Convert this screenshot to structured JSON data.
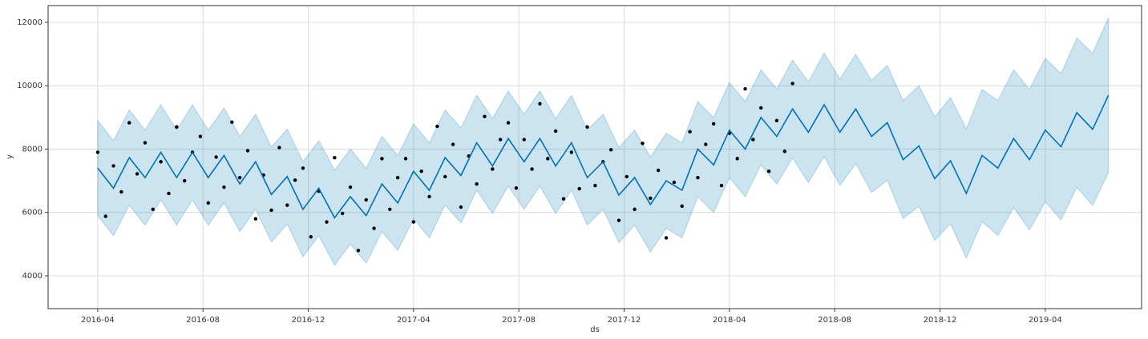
{
  "chart_data": {
    "type": "line",
    "xlabel": "ds",
    "ylabel": "y",
    "xlim": [
      2016.093,
      2019.555
    ],
    "ylim": [
      2965,
      12530
    ],
    "xticks": [
      {
        "value": 2016.25,
        "label": "2016-04"
      },
      {
        "value": 2016.5833,
        "label": "2016-08"
      },
      {
        "value": 2016.9167,
        "label": "2016-12"
      },
      {
        "value": 2017.25,
        "label": "2017-04"
      },
      {
        "value": 2017.5833,
        "label": "2017-08"
      },
      {
        "value": 2017.9167,
        "label": "2017-12"
      },
      {
        "value": 2018.25,
        "label": "2018-04"
      },
      {
        "value": 2018.5833,
        "label": "2018-08"
      },
      {
        "value": 2018.9167,
        "label": "2018-12"
      },
      {
        "value": 2019.25,
        "label": "2019-04"
      }
    ],
    "yticks": [
      4000,
      6000,
      8000,
      10000,
      12000
    ],
    "grid": true,
    "forecast": {
      "color": "#0072b2",
      "band_color": "#0072b2",
      "x": [
        2016.25,
        2016.3,
        2016.35,
        2016.4,
        2016.45,
        2016.5,
        2016.55,
        2016.6,
        2016.65,
        2016.7,
        2016.75,
        2016.8,
        2016.85,
        2016.9,
        2016.95,
        2017.0,
        2017.05,
        2017.1,
        2017.15,
        2017.2,
        2017.25,
        2017.3,
        2017.35,
        2017.4,
        2017.45,
        2017.5,
        2017.55,
        2017.6,
        2017.65,
        2017.7,
        2017.75,
        2017.8,
        2017.85,
        2017.9,
        2017.95,
        2018.0,
        2018.05,
        2018.1,
        2018.15,
        2018.2,
        2018.25,
        2018.3,
        2018.35,
        2018.4,
        2018.45,
        2018.5,
        2018.55,
        2018.6,
        2018.65,
        2018.7,
        2018.75,
        2018.8,
        2018.85,
        2018.9,
        2018.95,
        2019.0,
        2019.05,
        2019.1,
        2019.15,
        2019.2,
        2019.25,
        2019.3,
        2019.35,
        2019.4,
        2019.45
      ],
      "yhat": [
        7400,
        6767,
        7733,
        7100,
        7900,
        7100,
        7900,
        7100,
        7800,
        6900,
        7600,
        6567,
        7133,
        6100,
        6767,
        5833,
        6500,
        5900,
        6900,
        6300,
        7300,
        6700,
        7733,
        7167,
        8200,
        7467,
        8333,
        7600,
        8333,
        7467,
        8200,
        7100,
        7600,
        6550,
        7100,
        6250,
        7000,
        6700,
        8000,
        7500,
        8600,
        8000,
        9000,
        8400,
        9267,
        8533,
        9400,
        8533,
        9267,
        8400,
        8833,
        7667,
        8100,
        7067,
        7633,
        6600,
        7800,
        7400,
        8333,
        7667,
        8600,
        8075,
        9150,
        8625,
        9700
      ],
      "upper": [
        8900,
        8267,
        9233,
        8600,
        9400,
        8600,
        9400,
        8600,
        9300,
        8400,
        9100,
        8067,
        8633,
        7600,
        8267,
        7333,
        8000,
        7400,
        8400,
        7800,
        8800,
        8200,
        9233,
        8667,
        9700,
        8967,
        9833,
        9100,
        9833,
        8967,
        9700,
        8600,
        9100,
        8050,
        8600,
        7750,
        8500,
        8200,
        9500,
        9000,
        10100,
        9500,
        10500,
        9900,
        10812,
        10123,
        11035,
        10213,
        10992,
        10170,
        10648,
        9527,
        10005,
        9017,
        9628,
        8640,
        9885,
        9530,
        10508,
        9887,
        10865,
        10385,
        11505,
        11025,
        12145
      ],
      "lower": [
        5900,
        5267,
        6233,
        5600,
        6400,
        5600,
        6400,
        5600,
        6300,
        5400,
        6100,
        5067,
        5633,
        4600,
        5267,
        4333,
        5000,
        4400,
        5400,
        4800,
        5800,
        5200,
        6233,
        5667,
        6700,
        5967,
        6833,
        6100,
        6833,
        5967,
        6700,
        5600,
        6100,
        5050,
        5600,
        4750,
        5500,
        5200,
        6500,
        6000,
        7100,
        6500,
        7500,
        6900,
        7722,
        6943,
        7765,
        6853,
        7542,
        6630,
        7018,
        5807,
        6195,
        5117,
        5638,
        4560,
        5715,
        5270,
        6158,
        5447,
        6335,
        5765,
        6795,
        6225,
        7255
      ]
    },
    "observed": {
      "color": "#000000",
      "x": [
        2016.25,
        2016.275,
        2016.3,
        2016.325,
        2016.35,
        2016.375,
        2016.4,
        2016.425,
        2016.45,
        2016.475,
        2016.5,
        2016.525,
        2016.55,
        2016.575,
        2016.6,
        2016.625,
        2016.65,
        2016.675,
        2016.7,
        2016.725,
        2016.75,
        2016.775,
        2016.8,
        2016.825,
        2016.85,
        2016.875,
        2016.9,
        2016.925,
        2016.95,
        2016.975,
        2017.0,
        2017.025,
        2017.05,
        2017.075,
        2017.1,
        2017.125,
        2017.15,
        2017.175,
        2017.2,
        2017.225,
        2017.25,
        2017.275,
        2017.3,
        2017.325,
        2017.35,
        2017.375,
        2017.4,
        2017.425,
        2017.45,
        2017.475,
        2017.5,
        2017.525,
        2017.55,
        2017.575,
        2017.6,
        2017.625,
        2017.65,
        2017.675,
        2017.7,
        2017.725,
        2017.75,
        2017.775,
        2017.8,
        2017.825,
        2017.85,
        2017.875,
        2017.9,
        2017.925,
        2017.95,
        2017.975,
        2018.0,
        2018.025,
        2018.05,
        2018.075,
        2018.1,
        2018.125,
        2018.15,
        2018.175,
        2018.2,
        2018.225,
        2018.25,
        2018.275,
        2018.3,
        2018.325,
        2018.35,
        2018.375,
        2018.4,
        2018.425,
        2018.45
      ],
      "y": [
        7900,
        5880,
        7470,
        6650,
        8830,
        7220,
        8200,
        6100,
        7600,
        6600,
        8700,
        7000,
        7900,
        8400,
        6300,
        7750,
        6800,
        8850,
        7100,
        7950,
        5800,
        7180,
        6070,
        8050,
        6230,
        7020,
        7400,
        5230,
        6670,
        5700,
        7730,
        5970,
        6800,
        4800,
        6400,
        5500,
        7700,
        6100,
        7100,
        7700,
        5700,
        7300,
        6500,
        8720,
        7130,
        8150,
        6170,
        7780,
        6900,
        9030,
        7370,
        8300,
        8830,
        6770,
        8300,
        7370,
        9430,
        7700,
        8570,
        6430,
        7900,
        6750,
        8700,
        6850,
        7600,
        7980,
        5750,
        7130,
        6100,
        8180,
        6450,
        7330,
        5200,
        6950,
        6200,
        8550,
        7100,
        8150,
        8800,
        6850,
        8500,
        7700,
        9900,
        8300,
        9300,
        7300,
        8900,
        7930,
        10070
      ]
    }
  }
}
